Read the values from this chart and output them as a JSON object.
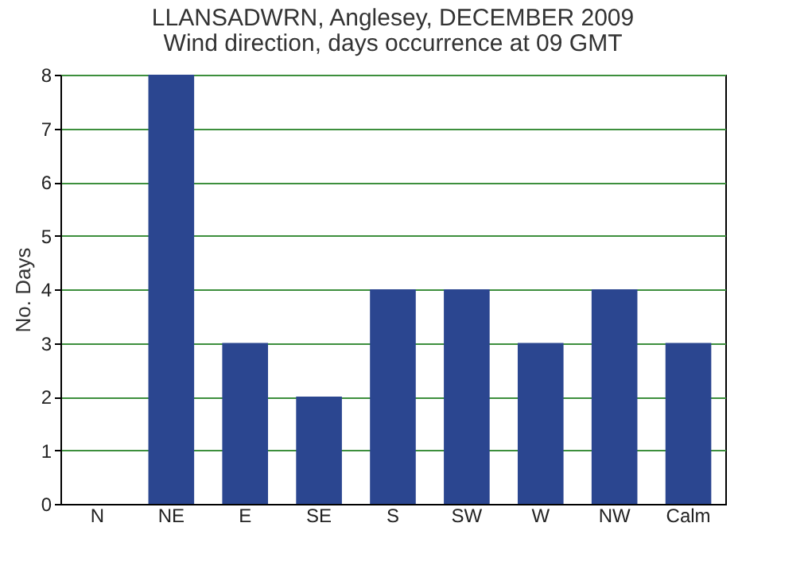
{
  "chart_data": {
    "type": "bar",
    "title": "LLANSADWRN, Anglesey, DECEMBER 2009",
    "subtitle": "Wind direction, days occurrence at 09 GMT",
    "ylabel": "No. Days",
    "categories": [
      "N",
      "NE",
      "E",
      "SE",
      "S",
      "SW",
      "W",
      "NW",
      "Calm"
    ],
    "values": [
      0,
      8,
      3,
      2,
      4,
      4,
      3,
      4,
      3
    ],
    "color": "#2b4690",
    "ylim": [
      0,
      8
    ],
    "yticks": [
      0,
      1,
      2,
      3,
      4,
      5,
      6,
      7,
      8
    ],
    "grid": "y"
  }
}
